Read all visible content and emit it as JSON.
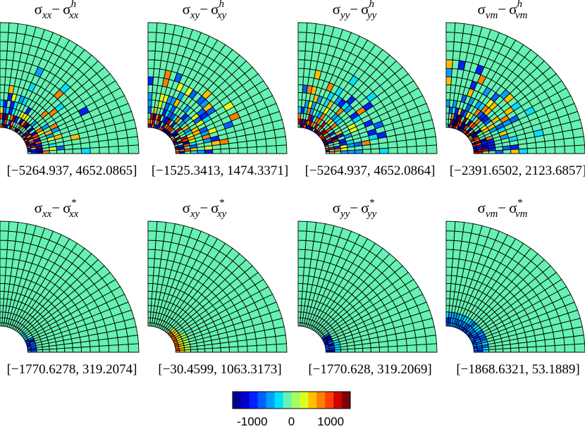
{
  "panels": [
    {
      "title": {
        "a": "σ",
        "a_sub": "xx",
        "op": "−",
        "b": "σ",
        "b_sub": "xx",
        "b_sup": "h"
      },
      "range": "[−5264.937, 4652.0865]"
    },
    {
      "title": {
        "a": "σ",
        "a_sub": "xy",
        "op": "−",
        "b": "σ",
        "b_sub": "xy",
        "b_sup": "h"
      },
      "range": "[−1525.3413, 1474.3371]"
    },
    {
      "title": {
        "a": "σ",
        "a_sub": "yy",
        "op": "−",
        "b": "σ",
        "b_sub": "yy",
        "b_sup": "h"
      },
      "range": "[−5264.937, 4652.0864]"
    },
    {
      "title": {
        "a": "σ",
        "a_sub": "vm",
        "op": "−",
        "b": "σ",
        "b_sub": "vm",
        "b_sup": "h"
      },
      "range": "[−2391.6502, 2123.6857]"
    },
    {
      "title": {
        "a": "σ",
        "a_sub": "xx",
        "op": "−",
        "b": "σ",
        "b_sub": "xx",
        "b_sup": "*"
      },
      "range": "[−1770.6278, 319.2074]"
    },
    {
      "title": {
        "a": "σ",
        "a_sub": "xy",
        "op": "−",
        "b": "σ",
        "b_sub": "xy",
        "b_sup": "*"
      },
      "range": "[−30.4599, 1063.3173]"
    },
    {
      "title": {
        "a": "σ",
        "a_sub": "yy",
        "op": "−",
        "b": "σ",
        "b_sub": "yy",
        "b_sup": "*"
      },
      "range": "[−1770.628, 319.2069]"
    },
    {
      "title": {
        "a": "σ",
        "a_sub": "vm",
        "op": "−",
        "b": "σ",
        "b_sub": "vm",
        "b_sup": "*"
      },
      "range": "[−1868.6321, 53.1889]"
    }
  ],
  "colorbar": {
    "lim": [
      -1500,
      1500
    ],
    "ticks": [
      -1000,
      0,
      1000
    ],
    "colors": [
      "#00008f",
      "#0000d0",
      "#0020ff",
      "#0060ff",
      "#00a0ff",
      "#00e0ff",
      "#66f2b2",
      "#a0ff60",
      "#e0ff20",
      "#ffc000",
      "#ff8000",
      "#ff4000",
      "#d00000",
      "#800000"
    ]
  }
}
